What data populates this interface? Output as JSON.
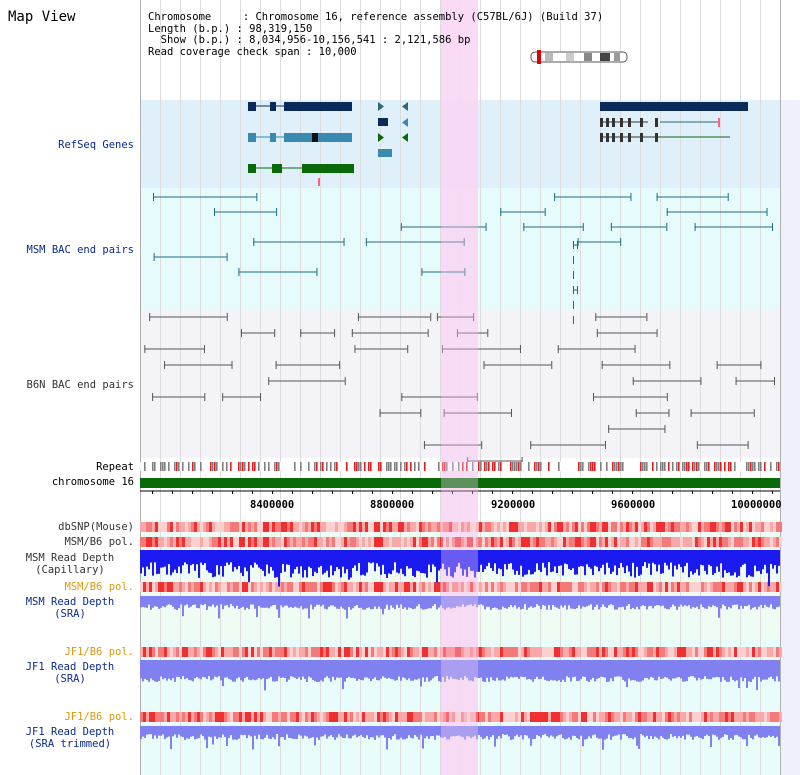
{
  "title": "Map View",
  "info": {
    "line1": "Chromosome     : Chromosome 16, reference assembly (C57BL/6J) (Build 37)",
    "line2": "Length (b.p.) : 98,319,150",
    "line3": "  Show (b.p.) : 8,034,956-10,156,541 : 2,121,586 bp",
    "line4": "Read coverage check span : 10,000"
  },
  "tracks": {
    "refseq": "RefSeq Genes",
    "msm_bac": "MSM BAC end pairs",
    "b6n_bac": "B6N BAC end pairs",
    "repeat": "Repeat",
    "chromosome": "chromosome 16",
    "dbsnp": "dbSNP(Mouse)",
    "msm_b6_pol_1": "MSM/B6 pol.",
    "msm_depth_cap_1": "MSM Read Depth",
    "msm_depth_cap_2": "(Capillary)",
    "msm_b6_pol_2": "MSM/B6 pol.",
    "msm_depth_sra_1": "MSM Read Depth",
    "msm_depth_sra_2": "(SRA)",
    "jf1_b6_pol_1": "JF1/B6 pol.",
    "jf1_depth_sra_1": "JF1 Read Depth",
    "jf1_depth_sra_2": "(SRA)",
    "jf1_b6_pol_2": "JF1/B6 pol.",
    "jf1_depth_trim_1": "JF1 Read Depth",
    "jf1_depth_trim_2": "(SRA trimmed)"
  },
  "axis_ticks": [
    "8400000",
    "8800000",
    "9200000",
    "9600000",
    "10000000"
  ],
  "colors": {
    "refseq_bg": "#dff0fa",
    "msm_bac_bg": "#e6fbfb",
    "b6n_bac_bg": "#f4f4f8",
    "highlight": "#f8d8f4",
    "gene_navy": "#0a2a5a",
    "gene_teal": "#3a8ab0",
    "gene_green": "#0a6a0a",
    "msm_pair": "#1f6b80",
    "b6n_pair": "#555555",
    "chromosome_bar": "#0a6a0a",
    "depth_capillary": "#1a1af0",
    "depth_sra": "#8080f0",
    "pol_red": "#f04040"
  }
}
